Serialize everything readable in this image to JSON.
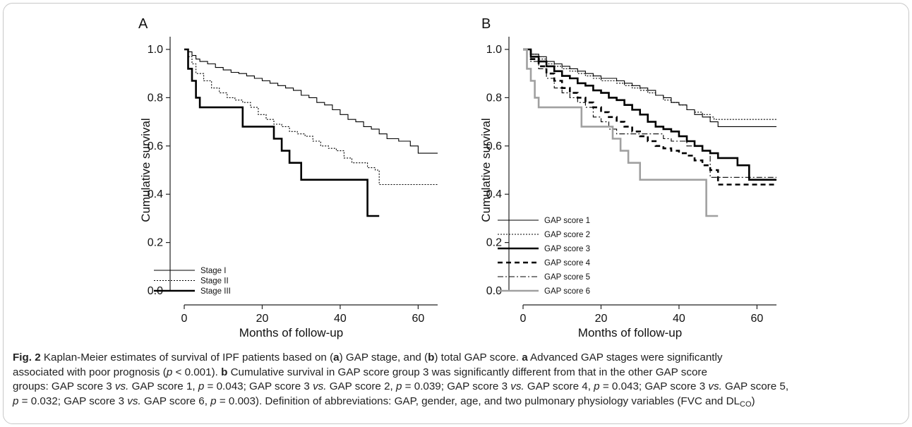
{
  "chart_data": [
    {
      "type": "line",
      "panel": "A",
      "xlabel": "Months of follow-up",
      "ylabel": "Cumulative survival",
      "xlim": [
        0,
        65
      ],
      "ylim": [
        0,
        1.0
      ],
      "x_ticks": [
        "0",
        "20",
        "40",
        "60"
      ],
      "y_ticks": [
        "0.0",
        "0.2",
        "0.4",
        "0.6",
        "0.8",
        "1.0"
      ],
      "legend_position": "bottom-left",
      "series": [
        {
          "name": "Stage I",
          "style": "thin-solid",
          "color": "#000000",
          "points": [
            [
              0,
              1.0
            ],
            [
              1,
              0.99
            ],
            [
              2,
              0.975
            ],
            [
              3,
              0.96
            ],
            [
              4,
              0.95
            ],
            [
              6,
              0.94
            ],
            [
              8,
              0.925
            ],
            [
              10,
              0.915
            ],
            [
              12,
              0.905
            ],
            [
              14,
              0.9
            ],
            [
              16,
              0.89
            ],
            [
              18,
              0.88
            ],
            [
              20,
              0.87
            ],
            [
              22,
              0.86
            ],
            [
              24,
              0.85
            ],
            [
              26,
              0.84
            ],
            [
              28,
              0.83
            ],
            [
              30,
              0.81
            ],
            [
              32,
              0.8
            ],
            [
              34,
              0.78
            ],
            [
              36,
              0.77
            ],
            [
              38,
              0.75
            ],
            [
              40,
              0.73
            ],
            [
              42,
              0.71
            ],
            [
              44,
              0.7
            ],
            [
              46,
              0.68
            ],
            [
              48,
              0.67
            ],
            [
              50,
              0.65
            ],
            [
              52,
              0.63
            ],
            [
              55,
              0.62
            ],
            [
              58,
              0.6
            ],
            [
              60,
              0.57
            ],
            [
              65,
              0.57
            ]
          ]
        },
        {
          "name": "Stage II",
          "style": "dotted",
          "color": "#000000",
          "points": [
            [
              0,
              1.0
            ],
            [
              1,
              0.97
            ],
            [
              2,
              0.94
            ],
            [
              3,
              0.9
            ],
            [
              5,
              0.87
            ],
            [
              7,
              0.84
            ],
            [
              9,
              0.82
            ],
            [
              11,
              0.8
            ],
            [
              13,
              0.79
            ],
            [
              15,
              0.78
            ],
            [
              17,
              0.76
            ],
            [
              19,
              0.73
            ],
            [
              21,
              0.71
            ],
            [
              23,
              0.69
            ],
            [
              25,
              0.68
            ],
            [
              27,
              0.66
            ],
            [
              29,
              0.65
            ],
            [
              31,
              0.64
            ],
            [
              33,
              0.62
            ],
            [
              35,
              0.6
            ],
            [
              37,
              0.59
            ],
            [
              39,
              0.58
            ],
            [
              41,
              0.55
            ],
            [
              43,
              0.53
            ],
            [
              45,
              0.53
            ],
            [
              47,
              0.51
            ],
            [
              49,
              0.5
            ],
            [
              50,
              0.44
            ],
            [
              65,
              0.44
            ]
          ]
        },
        {
          "name": "Stage III",
          "style": "thick-solid",
          "color": "#000000",
          "points": [
            [
              0,
              1.0
            ],
            [
              1,
              0.92
            ],
            [
              2,
              0.87
            ],
            [
              3,
              0.8
            ],
            [
              4,
              0.76
            ],
            [
              14,
              0.76
            ],
            [
              15,
              0.68
            ],
            [
              22,
              0.68
            ],
            [
              23,
              0.63
            ],
            [
              25,
              0.58
            ],
            [
              27,
              0.53
            ],
            [
              30,
              0.46
            ],
            [
              47,
              0.46
            ],
            [
              47,
              0.31
            ],
            [
              50,
              0.31
            ]
          ]
        }
      ]
    },
    {
      "type": "line",
      "panel": "B",
      "xlabel": "Months of follow-up",
      "ylabel": "Cumulative survival",
      "xlim": [
        0,
        65
      ],
      "ylim": [
        0,
        1.0
      ],
      "x_ticks": [
        "0",
        "20",
        "40",
        "60"
      ],
      "y_ticks": [
        "0.0",
        "0.2",
        "0.4",
        "0.6",
        "0.8",
        "1.0"
      ],
      "legend_position": "bottom-left",
      "series": [
        {
          "name": "GAP score 1",
          "style": "thin-solid",
          "color": "#000000",
          "points": [
            [
              0,
              1.0
            ],
            [
              2,
              0.98
            ],
            [
              4,
              0.97
            ],
            [
              6,
              0.95
            ],
            [
              8,
              0.94
            ],
            [
              10,
              0.93
            ],
            [
              12,
              0.92
            ],
            [
              14,
              0.91
            ],
            [
              16,
              0.9
            ],
            [
              18,
              0.89
            ],
            [
              20,
              0.88
            ],
            [
              22,
              0.88
            ],
            [
              24,
              0.87
            ],
            [
              26,
              0.86
            ],
            [
              28,
              0.85
            ],
            [
              30,
              0.84
            ],
            [
              32,
              0.83
            ],
            [
              34,
              0.81
            ],
            [
              36,
              0.8
            ],
            [
              38,
              0.78
            ],
            [
              40,
              0.77
            ],
            [
              42,
              0.75
            ],
            [
              44,
              0.73
            ],
            [
              46,
              0.72
            ],
            [
              48,
              0.7
            ],
            [
              50,
              0.68
            ],
            [
              65,
              0.68
            ]
          ]
        },
        {
          "name": "GAP score 2",
          "style": "dotted",
          "color": "#000000",
          "points": [
            [
              0,
              1.0
            ],
            [
              2,
              0.98
            ],
            [
              4,
              0.96
            ],
            [
              6,
              0.94
            ],
            [
              8,
              0.93
            ],
            [
              10,
              0.92
            ],
            [
              12,
              0.91
            ],
            [
              14,
              0.9
            ],
            [
              16,
              0.89
            ],
            [
              18,
              0.88
            ],
            [
              20,
              0.87
            ],
            [
              22,
              0.87
            ],
            [
              24,
              0.86
            ],
            [
              26,
              0.85
            ],
            [
              28,
              0.84
            ],
            [
              30,
              0.83
            ],
            [
              32,
              0.82
            ],
            [
              34,
              0.81
            ],
            [
              36,
              0.79
            ],
            [
              38,
              0.78
            ],
            [
              40,
              0.77
            ],
            [
              42,
              0.75
            ],
            [
              44,
              0.74
            ],
            [
              46,
              0.73
            ],
            [
              48,
              0.72
            ],
            [
              49,
              0.71
            ],
            [
              65,
              0.71
            ]
          ]
        },
        {
          "name": "GAP score 3",
          "style": "thick-solid",
          "color": "#000000",
          "points": [
            [
              0,
              1.0
            ],
            [
              2,
              0.97
            ],
            [
              4,
              0.95
            ],
            [
              6,
              0.93
            ],
            [
              8,
              0.91
            ],
            [
              10,
              0.89
            ],
            [
              12,
              0.88
            ],
            [
              14,
              0.86
            ],
            [
              16,
              0.85
            ],
            [
              18,
              0.83
            ],
            [
              20,
              0.82
            ],
            [
              22,
              0.8
            ],
            [
              24,
              0.79
            ],
            [
              26,
              0.77
            ],
            [
              28,
              0.75
            ],
            [
              30,
              0.73
            ],
            [
              32,
              0.7
            ],
            [
              34,
              0.68
            ],
            [
              36,
              0.67
            ],
            [
              38,
              0.66
            ],
            [
              40,
              0.64
            ],
            [
              42,
              0.62
            ],
            [
              44,
              0.6
            ],
            [
              46,
              0.58
            ],
            [
              48,
              0.57
            ],
            [
              50,
              0.55
            ],
            [
              54,
              0.55
            ],
            [
              55,
              0.52
            ],
            [
              58,
              0.52
            ],
            [
              58,
              0.46
            ],
            [
              65,
              0.46
            ]
          ]
        },
        {
          "name": "GAP score 4",
          "style": "thick-dashed",
          "color": "#000000",
          "points": [
            [
              0,
              1.0
            ],
            [
              2,
              0.96
            ],
            [
              4,
              0.93
            ],
            [
              6,
              0.9
            ],
            [
              8,
              0.87
            ],
            [
              10,
              0.84
            ],
            [
              12,
              0.82
            ],
            [
              14,
              0.8
            ],
            [
              16,
              0.78
            ],
            [
              18,
              0.76
            ],
            [
              20,
              0.74
            ],
            [
              22,
              0.72
            ],
            [
              24,
              0.7
            ],
            [
              26,
              0.68
            ],
            [
              28,
              0.66
            ],
            [
              30,
              0.64
            ],
            [
              32,
              0.62
            ],
            [
              34,
              0.6
            ],
            [
              36,
              0.59
            ],
            [
              38,
              0.58
            ],
            [
              40,
              0.57
            ],
            [
              42,
              0.56
            ],
            [
              44,
              0.54
            ],
            [
              46,
              0.52
            ],
            [
              48,
              0.5
            ],
            [
              50,
              0.44
            ],
            [
              65,
              0.44
            ]
          ]
        },
        {
          "name": "GAP score 5",
          "style": "dash-dot",
          "color": "#000000",
          "points": [
            [
              0,
              1.0
            ],
            [
              2,
              0.95
            ],
            [
              4,
              0.92
            ],
            [
              6,
              0.88
            ],
            [
              8,
              0.84
            ],
            [
              10,
              0.82
            ],
            [
              12,
              0.8
            ],
            [
              14,
              0.78
            ],
            [
              16,
              0.76
            ],
            [
              18,
              0.72
            ],
            [
              20,
              0.7
            ],
            [
              22,
              0.67
            ],
            [
              24,
              0.65
            ],
            [
              26,
              0.65
            ],
            [
              34,
              0.65
            ],
            [
              36,
              0.63
            ],
            [
              38,
              0.62
            ],
            [
              40,
              0.62
            ],
            [
              42,
              0.6
            ],
            [
              44,
              0.6
            ],
            [
              46,
              0.58
            ],
            [
              48,
              0.47
            ],
            [
              65,
              0.47
            ]
          ]
        },
        {
          "name": "GAP score 6",
          "style": "thick-gray",
          "color": "#a0a0a0",
          "points": [
            [
              0,
              1.0
            ],
            [
              1,
              0.92
            ],
            [
              2,
              0.87
            ],
            [
              3,
              0.8
            ],
            [
              4,
              0.76
            ],
            [
              14,
              0.76
            ],
            [
              15,
              0.68
            ],
            [
              22,
              0.68
            ],
            [
              23,
              0.63
            ],
            [
              25,
              0.58
            ],
            [
              27,
              0.53
            ],
            [
              30,
              0.46
            ],
            [
              47,
              0.46
            ],
            [
              47,
              0.31
            ],
            [
              50,
              0.31
            ]
          ]
        }
      ]
    }
  ],
  "panels": {
    "a_letter": "A",
    "b_letter": "B"
  },
  "caption": {
    "fig_label": "Fig. 2",
    "line1_pre": " Kaplan-Meier estimates of survival of IPF patients based on (",
    "line1_a": "a",
    "line1_mid": ") GAP stage, and (",
    "line1_b": "b",
    "line1_post": ") total GAP score. ",
    "line1_a2": "a",
    "line1_end": " Advanced GAP stages were significantly",
    "line2_pre": "associated with poor prognosis (",
    "p": "p",
    "line2_val": " < 0.001). ",
    "line2_b": "b",
    "line2_end": " Cumulative survival in GAP score group 3 was significantly different from that in the other GAP score",
    "line3_a": "groups: GAP score 3 ",
    "vs": "vs.",
    "line3_b": " GAP score 1, ",
    "line3_c": " = 0.043; GAP score 3 ",
    "line3_d": " GAP score 2, ",
    "line3_e": " = 0.039; GAP score 3 ",
    "line3_f": " GAP score 4, ",
    "line3_g": " = 0.043; GAP score 3 ",
    "line3_h": " GAP score 5,",
    "line4_a": " = 0.032; GAP score 3 ",
    "line4_b": " GAP score 6, ",
    "line4_c": " = 0.003). Definition of abbreviations: GAP, gender, age, and two pulmonary physiology variables (FVC and DL",
    "sub_co": "CO",
    "line4_end": ")"
  }
}
